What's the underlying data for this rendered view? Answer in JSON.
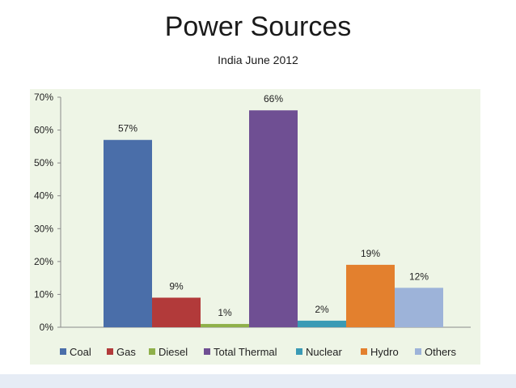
{
  "chart_data": {
    "type": "bar",
    "title": "Power Sources",
    "subtitle": "India June 2012",
    "categories": [
      "Coal",
      "Gas",
      "Diesel",
      "Total Thermal",
      "Nuclear",
      "Hydro",
      "Others"
    ],
    "values": [
      57,
      9,
      1,
      66,
      2,
      19,
      12
    ],
    "data_labels": [
      "57%",
      "9%",
      "1%",
      "66%",
      "2%",
      "19%",
      "12%"
    ],
    "colors": [
      "#4a6ea9",
      "#b23a3a",
      "#8fb04a",
      "#6f4f93",
      "#3a9ab5",
      "#e3802e",
      "#9db3d9"
    ],
    "y_ticks": [
      "0%",
      "10%",
      "20%",
      "30%",
      "40%",
      "50%",
      "60%",
      "70%"
    ],
    "ylim": [
      0,
      70
    ],
    "grid": false,
    "legend_position": "bottom",
    "plot_background": "#eef5e6"
  }
}
